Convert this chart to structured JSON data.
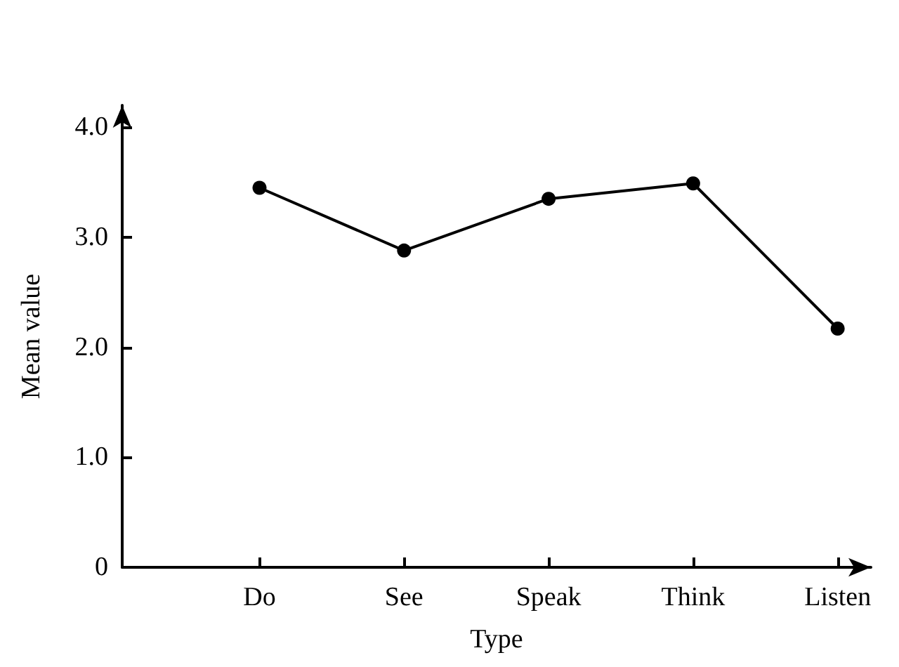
{
  "chart_data": {
    "type": "line",
    "xlabel": "Type",
    "ylabel": "Mean value",
    "categories": [
      "Do",
      "See",
      "Speak",
      "Think",
      "Listen"
    ],
    "series": [
      {
        "color": "#000000",
        "values": [
          3.45,
          2.88,
          3.35,
          3.49,
          2.17
        ]
      }
    ],
    "ylim": [
      0,
      4.2
    ],
    "yticks": [
      0,
      {
        "value": 1,
        "label": "1.0"
      },
      {
        "value": 2,
        "label": "2.0"
      },
      {
        "value": 3,
        "label": "3.0"
      },
      {
        "value": 4,
        "label": "4.0"
      }
    ],
    "marker": "circle",
    "line_style": "solid"
  }
}
